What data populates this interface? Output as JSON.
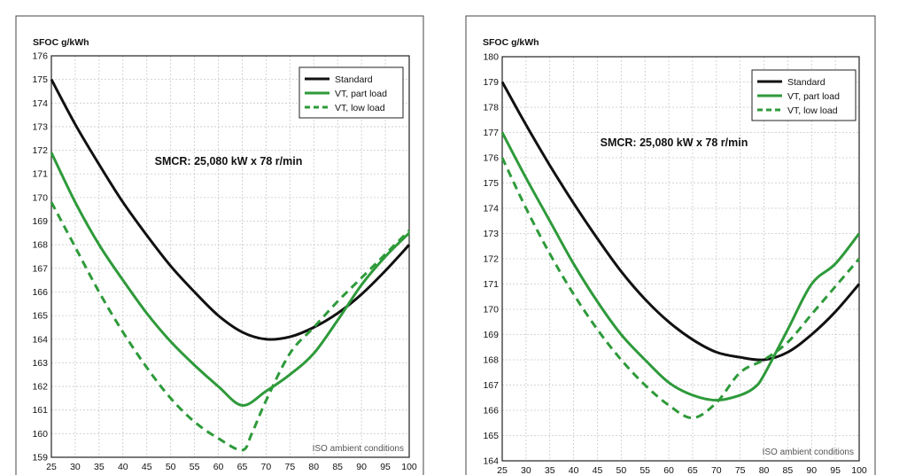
{
  "chart_data": [
    {
      "type": "line",
      "ylabel": "SFOC g/kWh",
      "xlabel": "",
      "annotation": "SMCR: 25,080 kW x 78 r/min",
      "note": "ISO ambient conditions",
      "xlim": [
        25,
        100
      ],
      "ylim": [
        159,
        176
      ],
      "x_ticks": [
        25,
        30,
        35,
        40,
        45,
        50,
        55,
        60,
        65,
        70,
        75,
        80,
        85,
        90,
        95,
        100
      ],
      "y_ticks": [
        159,
        160,
        161,
        162,
        163,
        164,
        165,
        166,
        167,
        168,
        169,
        170,
        171,
        172,
        173,
        174,
        175,
        176
      ],
      "legend": [
        "Standard",
        "VT, part load",
        "VT, low load"
      ],
      "series": [
        {
          "name": "Standard",
          "color": "#111111",
          "style": "solid",
          "x": [
            25,
            30,
            35,
            40,
            45,
            50,
            55,
            60,
            65,
            70,
            75,
            80,
            85,
            90,
            95,
            100
          ],
          "y": [
            175.0,
            173.1,
            171.4,
            169.8,
            168.4,
            167.1,
            166.0,
            165.0,
            164.3,
            164.0,
            164.1,
            164.5,
            165.1,
            165.9,
            166.9,
            168.0
          ]
        },
        {
          "name": "VT, part load",
          "color": "#2e9a3a",
          "style": "solid",
          "x": [
            25,
            30,
            35,
            40,
            45,
            50,
            55,
            60,
            65,
            70,
            75,
            80,
            85,
            90,
            95,
            100
          ],
          "y": [
            171.9,
            169.8,
            168.0,
            166.5,
            165.1,
            163.9,
            162.9,
            162.0,
            161.2,
            161.8,
            162.5,
            163.4,
            164.8,
            166.3,
            167.5,
            168.5
          ]
        },
        {
          "name": "VT, low load",
          "color": "#2e9a3a",
          "style": "dashed",
          "x": [
            25,
            30,
            35,
            40,
            45,
            50,
            55,
            60,
            65,
            67,
            70,
            75,
            80,
            85,
            90,
            95,
            100
          ],
          "y": [
            169.8,
            167.9,
            166.0,
            164.3,
            162.8,
            161.5,
            160.5,
            159.8,
            159.3,
            160.0,
            161.4,
            163.4,
            164.5,
            165.6,
            166.6,
            167.6,
            168.6
          ]
        }
      ]
    },
    {
      "type": "line",
      "ylabel": "SFOC g/kWh",
      "xlabel": "",
      "annotation": "SMCR: 25,080 kW x 78 r/min",
      "note": "ISO ambient conditions",
      "xlim": [
        25,
        100
      ],
      "ylim": [
        164,
        180
      ],
      "x_ticks": [
        25,
        30,
        35,
        40,
        45,
        50,
        55,
        60,
        65,
        70,
        75,
        80,
        85,
        90,
        95,
        100
      ],
      "y_ticks": [
        164,
        165,
        166,
        167,
        168,
        169,
        170,
        171,
        172,
        173,
        174,
        175,
        176,
        177,
        178,
        179,
        180
      ],
      "legend": [
        "Standard",
        "VT, part load",
        "VT, low load"
      ],
      "series": [
        {
          "name": "Standard",
          "color": "#111111",
          "style": "solid",
          "x": [
            25,
            30,
            35,
            40,
            45,
            50,
            55,
            60,
            65,
            70,
            75,
            80,
            85,
            90,
            95,
            100
          ],
          "y": [
            179.0,
            177.3,
            175.7,
            174.2,
            172.8,
            171.5,
            170.4,
            169.5,
            168.8,
            168.3,
            168.1,
            168.0,
            168.3,
            169.0,
            169.9,
            171.0
          ]
        },
        {
          "name": "VT, part load",
          "color": "#2e9a3a",
          "style": "solid",
          "x": [
            25,
            30,
            35,
            40,
            45,
            50,
            55,
            60,
            65,
            70,
            75,
            78,
            80,
            85,
            90,
            95,
            100
          ],
          "y": [
            177.0,
            175.2,
            173.5,
            171.8,
            170.3,
            169.0,
            168.0,
            167.1,
            166.6,
            166.4,
            166.6,
            166.9,
            167.4,
            169.2,
            171.0,
            171.8,
            173.0
          ]
        },
        {
          "name": "VT, low load",
          "color": "#2e9a3a",
          "style": "dashed",
          "x": [
            25,
            30,
            35,
            40,
            45,
            50,
            55,
            60,
            65,
            70,
            75,
            80,
            85,
            90,
            95,
            100
          ],
          "y": [
            176.0,
            174.0,
            172.2,
            170.6,
            169.2,
            168.0,
            167.0,
            166.2,
            165.7,
            166.3,
            167.5,
            168.0,
            168.7,
            169.8,
            170.9,
            172.0
          ]
        }
      ]
    }
  ]
}
